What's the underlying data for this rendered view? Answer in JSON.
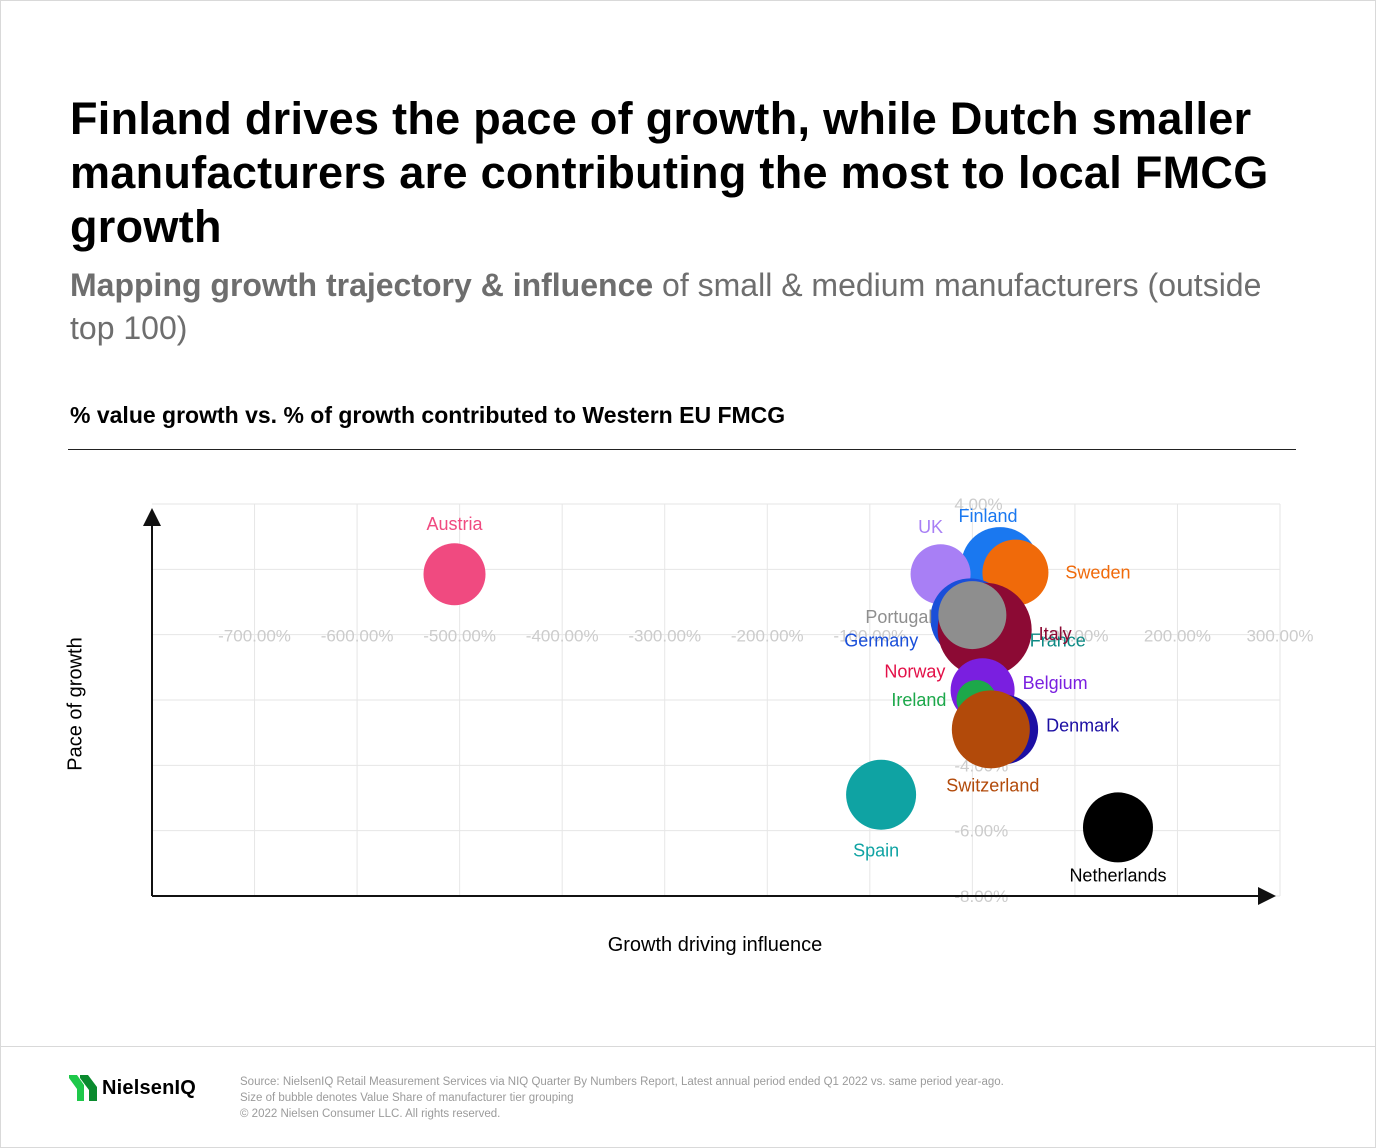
{
  "header": {
    "title": "Finland drives the pace of growth, while Dutch smaller manufacturers are contributing the most to local FMCG growth",
    "subtitle_bold": "Mapping growth trajectory & influence",
    "subtitle_rest": " of small & medium manufacturers (outside top 100)"
  },
  "chart_heading": "% value growth vs. % of growth contributed to Western EU FMCG",
  "chart_data": {
    "type": "scatter",
    "subtype": "bubble",
    "xlabel": "Growth driving influence",
    "ylabel": "Pace of growth",
    "x_ticks": [
      "-700.00%",
      "-600.00%",
      "-500.00%",
      "-400.00%",
      "-300.00%",
      "-200.00%",
      "-100.00%",
      "100.00%",
      "200.00%",
      "300.00%"
    ],
    "y_ticks": [
      "4.00%",
      "-2.00%",
      "-4.00%",
      "-6.00%",
      "-8.00%"
    ],
    "xlim": [
      -800,
      300
    ],
    "ylim": [
      -8,
      4
    ],
    "grid": true,
    "points": [
      {
        "label": "Austria",
        "x": -505,
        "y": 1.85,
        "size": 31,
        "color": "#f04a80"
      },
      {
        "label": "Finland",
        "x": 27,
        "y": 2.1,
        "size": 39,
        "color": "#1a78f0"
      },
      {
        "label": "Sweden",
        "x": 42,
        "y": 1.9,
        "size": 33,
        "color": "#f06a0a"
      },
      {
        "label": "UK",
        "x": -31,
        "y": 1.85,
        "size": 30,
        "color": "#a87ff5"
      },
      {
        "label": "Germany",
        "x": -2,
        "y": 0.5,
        "size": 40,
        "color": "#1a4fd9"
      },
      {
        "label": "France",
        "x": 15,
        "y": 0.0,
        "size": 36,
        "color": "#0d8a84"
      },
      {
        "label": "Italy",
        "x": 12,
        "y": 0.15,
        "size": 47,
        "color": "#8c0a34"
      },
      {
        "label": "Portugal",
        "x": 0,
        "y": 0.6,
        "size": 34,
        "color": "#8e8e8e"
      },
      {
        "label": "Norway",
        "x": 1,
        "y": -1.4,
        "size": 18,
        "color": "#e31048"
      },
      {
        "label": "Belgium",
        "x": 10,
        "y": -1.7,
        "size": 32,
        "color": "#7a1fe0"
      },
      {
        "label": "Ireland",
        "x": 4,
        "y": -2.0,
        "size": 20,
        "color": "#1ca84a"
      },
      {
        "label": "Denmark",
        "x": 30,
        "y": -2.9,
        "size": 35,
        "color": "#1c0fa3"
      },
      {
        "label": "Switzerland",
        "x": 18,
        "y": -2.9,
        "size": 39,
        "color": "#b24a0a"
      },
      {
        "label": "Spain",
        "x": -89,
        "y": -4.9,
        "size": 35,
        "color": "#0fa3a3"
      },
      {
        "label": "Netherlands",
        "x": 142,
        "y": -5.9,
        "size": 35,
        "color": "#000000"
      }
    ]
  },
  "footer": {
    "brand": "NielsenIQ",
    "source_line1": "Source: NielsenIQ Retail Measurement Services via NIQ Quarter By Numbers Report, Latest annual period ended Q1 2022 vs. same period year-ago.",
    "source_line2": "Size of bubble denotes Value Share of manufacturer tier grouping",
    "source_line3": "© 2022 Nielsen Consumer LLC. All rights reserved."
  },
  "colors": {
    "brand_green": "#1ec84a",
    "grid": "#e6e6e6",
    "tick_label": "#cccccc",
    "axis": "#111111"
  }
}
